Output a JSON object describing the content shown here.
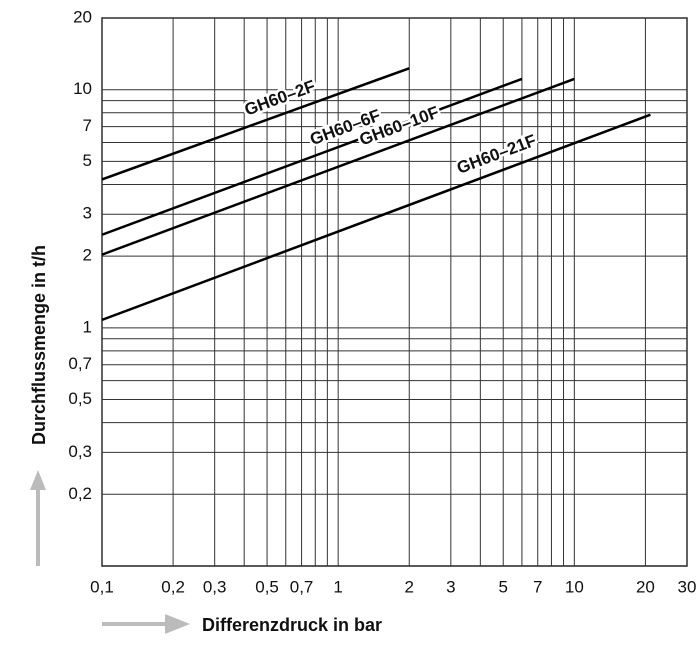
{
  "chart_data": {
    "type": "line",
    "log_x": true,
    "log_y": true,
    "grid": true,
    "xlabel": "Differenzdruck in bar",
    "ylabel": "Durchflussmenge in t/h",
    "xlim": [
      0.1,
      30
    ],
    "ylim": [
      0.1,
      20
    ],
    "xticks": [
      {
        "value": 0.1,
        "label": "0,1"
      },
      {
        "value": 0.2,
        "label": "0,2"
      },
      {
        "value": 0.3,
        "label": "0,3"
      },
      {
        "value": 0.5,
        "label": "0,5"
      },
      {
        "value": 0.7,
        "label": "0,7"
      },
      1,
      2,
      3,
      5,
      7,
      10,
      20,
      30
    ],
    "yticks": [
      {
        "value": 0.2,
        "label": "0,2"
      },
      {
        "value": 0.3,
        "label": "0,3"
      },
      {
        "value": 0.5,
        "label": "0,5"
      },
      {
        "value": 0.7,
        "label": "0,7"
      },
      1,
      2,
      3,
      5,
      7,
      10,
      20
    ],
    "x_minor_grid": [
      0.4,
      0.6,
      0.8,
      0.9,
      4,
      6,
      8,
      9
    ],
    "y_minor_grid": [
      0.4,
      0.6,
      0.8,
      0.9,
      4,
      6,
      8,
      9
    ],
    "series": [
      {
        "name": "GH60–2F",
        "color": "#000000",
        "x": [
          0.1,
          2
        ],
        "values": [
          4.2,
          12.3
        ]
      },
      {
        "name": "GH60–6F",
        "color": "#000000",
        "x": [
          0.1,
          6
        ],
        "values": [
          2.46,
          11.1
        ]
      },
      {
        "name": "GH60–10F",
        "color": "#000000",
        "x": [
          0.1,
          10
        ],
        "values": [
          2.03,
          11.1
        ]
      },
      {
        "name": "GH60–21F",
        "color": "#000000",
        "x": [
          0.1,
          21
        ],
        "values": [
          1.08,
          7.85
        ]
      }
    ]
  }
}
